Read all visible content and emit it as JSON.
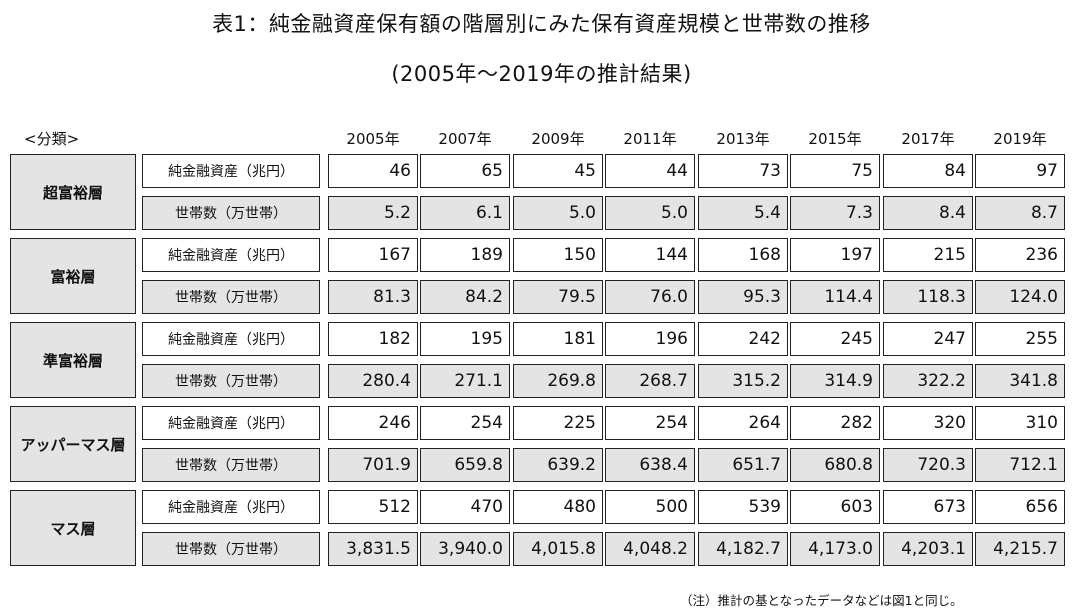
{
  "title": "表1：純金融資産保有額の階層別にみた保有資産規模と世帯数の推移",
  "subtitle": "(2005年〜2019年の推計結果)",
  "classification_label": "<分類>",
  "years": [
    "2005年",
    "2007年",
    "2009年",
    "2011年",
    "2013年",
    "2015年",
    "2017年",
    "2019年"
  ],
  "row_labels": {
    "assets": "純金融資産（兆円）",
    "households": "世帯数（万世帯）"
  },
  "groups": [
    {
      "name": "超富裕層",
      "assets": [
        "46",
        "65",
        "45",
        "44",
        "73",
        "75",
        "84",
        "97"
      ],
      "households": [
        "5.2",
        "6.1",
        "5.0",
        "5.0",
        "5.4",
        "7.3",
        "8.4",
        "8.7"
      ]
    },
    {
      "name": "富裕層",
      "assets": [
        "167",
        "189",
        "150",
        "144",
        "168",
        "197",
        "215",
        "236"
      ],
      "households": [
        "81.3",
        "84.2",
        "79.5",
        "76.0",
        "95.3",
        "114.4",
        "118.3",
        "124.0"
      ]
    },
    {
      "name": "準富裕層",
      "assets": [
        "182",
        "195",
        "181",
        "196",
        "242",
        "245",
        "247",
        "255"
      ],
      "households": [
        "280.4",
        "271.1",
        "269.8",
        "268.7",
        "315.2",
        "314.9",
        "322.2",
        "341.8"
      ]
    },
    {
      "name": "アッパーマス層",
      "assets": [
        "246",
        "254",
        "225",
        "254",
        "264",
        "282",
        "320",
        "310"
      ],
      "households": [
        "701.9",
        "659.8",
        "639.2",
        "638.4",
        "651.7",
        "680.8",
        "720.3",
        "712.1"
      ]
    },
    {
      "name": "マス層",
      "assets": [
        "512",
        "470",
        "480",
        "500",
        "539",
        "603",
        "673",
        "656"
      ],
      "households": [
        "3,831.5",
        "3,940.0",
        "4,015.8",
        "4,048.2",
        "4,182.7",
        "4,173.0",
        "4,203.1",
        "4,215.7"
      ]
    }
  ],
  "note": "（注）推計の基となったデータなどは図1と同じ。",
  "colors": {
    "cell_gray": "#e4e4e4",
    "border": "#222222"
  }
}
